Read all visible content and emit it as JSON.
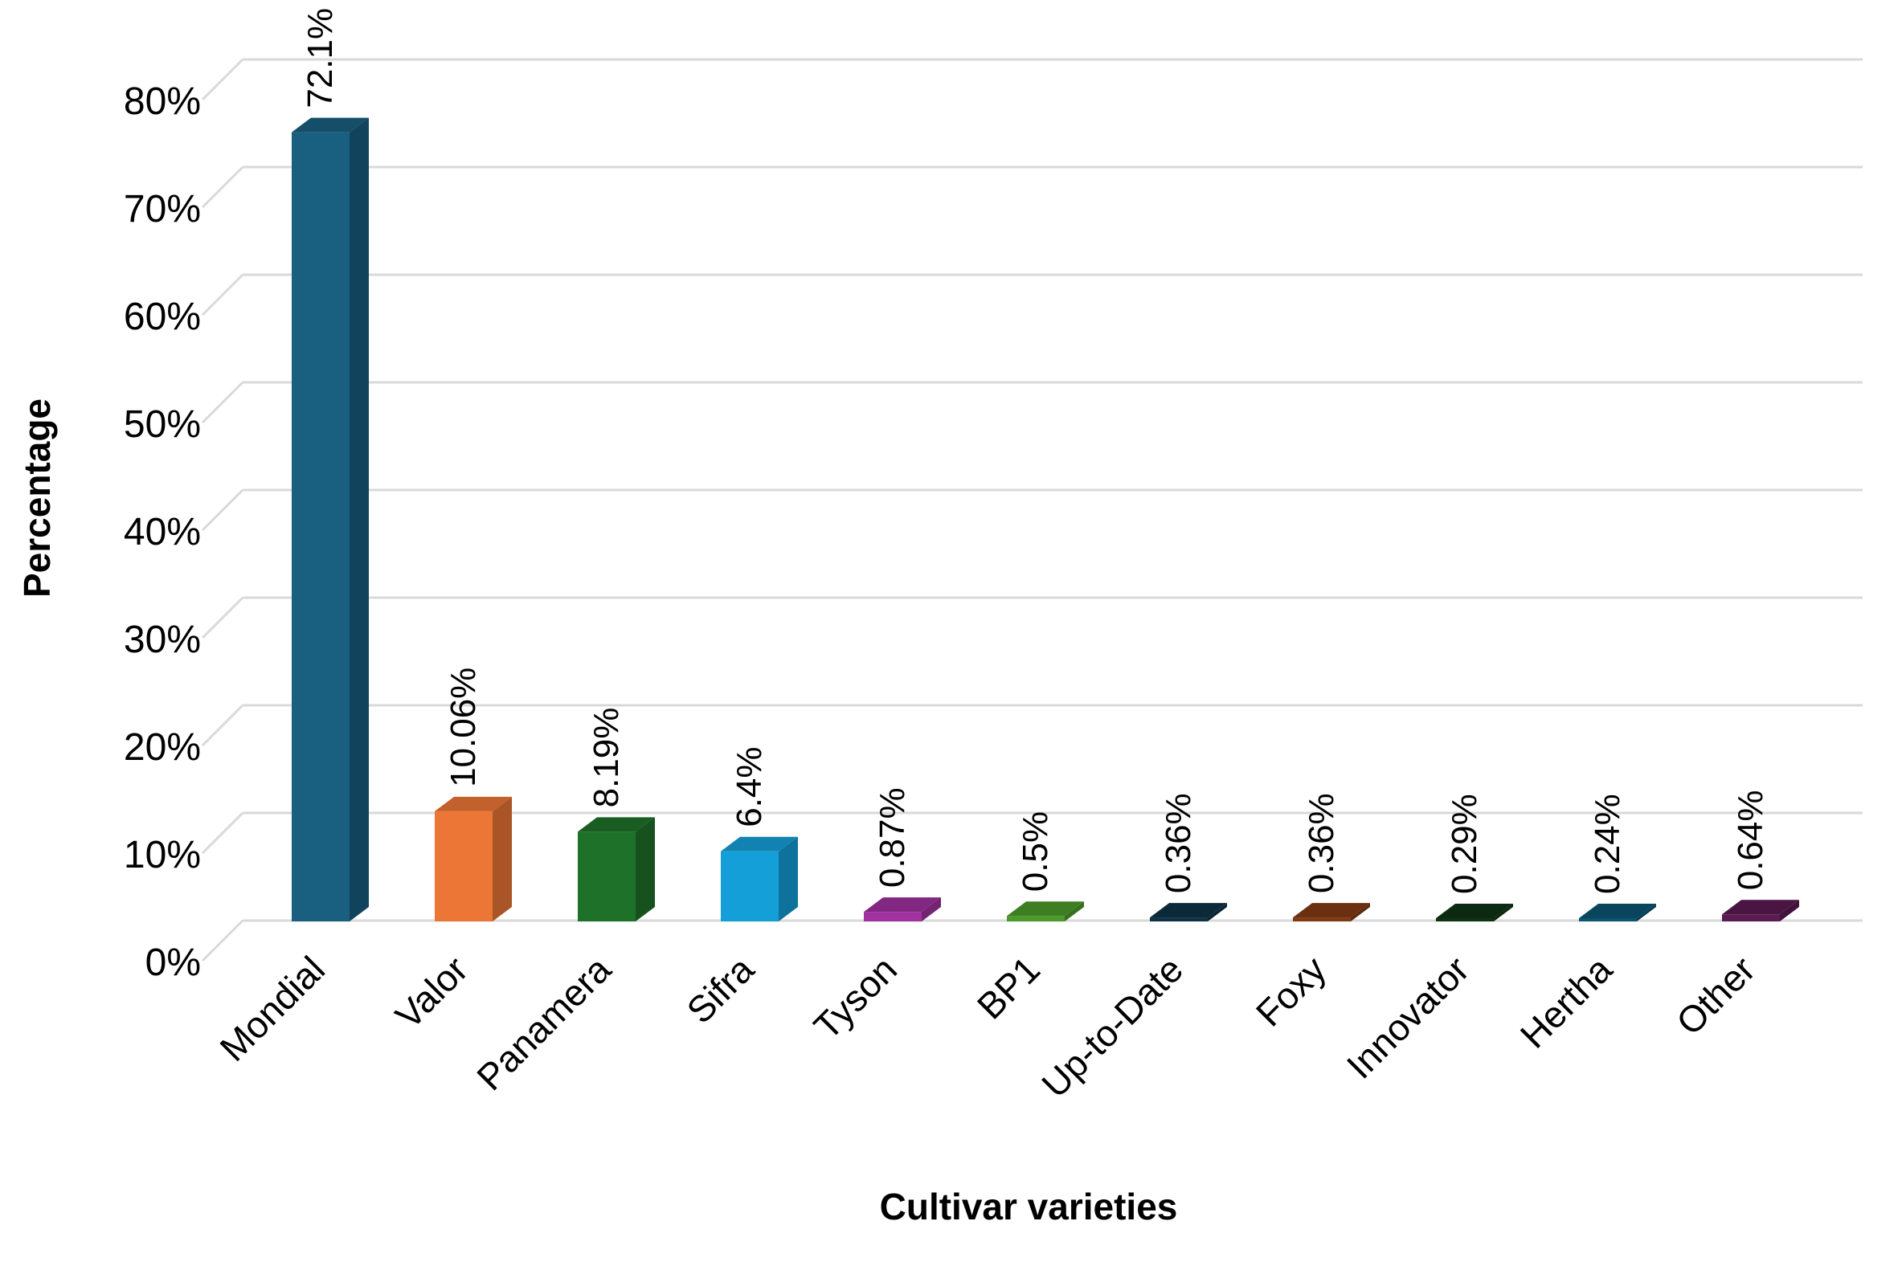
{
  "chart_data": {
    "type": "bar",
    "title": "",
    "xlabel": "Cultivar varieties",
    "ylabel": "Percentage",
    "ylim": [
      0,
      80
    ],
    "yticks": [
      "0%",
      "10%",
      "20%",
      "30%",
      "40%",
      "50%",
      "60%",
      "70%",
      "80%"
    ],
    "grid": true,
    "categories": [
      "Mondial",
      "Valor",
      "Panamera",
      "Sifra",
      "Tyson",
      "BP1",
      "Up-to-Date",
      "Foxy",
      "Innovator",
      "Hertha",
      "Other"
    ],
    "values": [
      72.1,
      10.06,
      8.19,
      6.4,
      0.87,
      0.5,
      0.36,
      0.36,
      0.29,
      0.24,
      0.64
    ],
    "data_labels": [
      "72.1%",
      "10.06%",
      "8.19%",
      "6.4%",
      "0.87%",
      "0.5%",
      "0.36%",
      "0.36%",
      "0.29%",
      "0.24%",
      "0.64%"
    ],
    "colors": [
      "#185f80",
      "#ec7636",
      "#1e7129",
      "#159fd9",
      "#a0319e",
      "#4c9a2a",
      "#0f3246",
      "#813b13",
      "#0f3312",
      "#0b5472",
      "#5a1a52"
    ]
  }
}
